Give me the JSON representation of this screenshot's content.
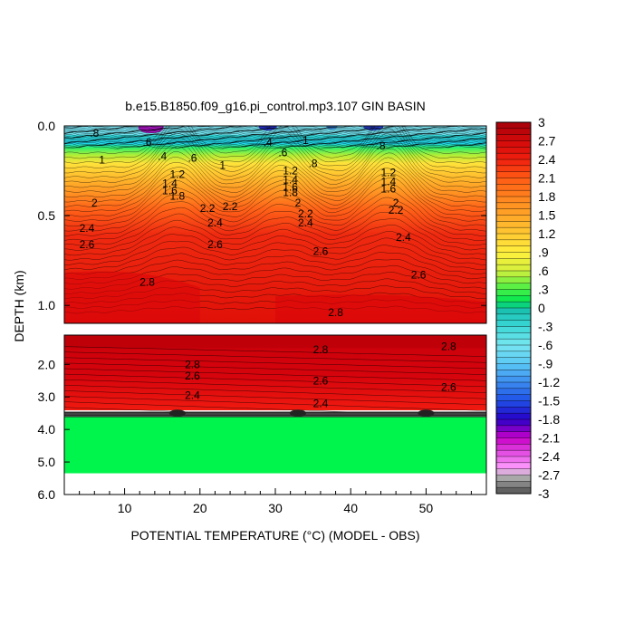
{
  "chart_data": {
    "type": "heatmap",
    "title": "b.e15.B1850.f09_g16.pi_control.mp3.107 GIN BASIN",
    "xlabel": "POTENTIAL TEMPERATURE (°C) (MODEL - OBS)",
    "ylabel": "DEPTH (km)",
    "x_ticks": [
      "10",
      "20",
      "30",
      "40",
      "50"
    ],
    "x_tick_values": [
      10,
      20,
      30,
      40,
      50
    ],
    "xlim": [
      2,
      58
    ],
    "upper_panel": {
      "ylim": [
        0.0,
        1.1
      ],
      "y_ticks": [
        "0.0",
        "0.5",
        "1.0"
      ],
      "y_tick_values": [
        0.0,
        0.5,
        1.0
      ]
    },
    "lower_panel": {
      "ylim": [
        1.1,
        6.0
      ],
      "y_ticks": [
        "2.0",
        "3.0",
        "4.0",
        "5.0",
        "6.0"
      ],
      "y_tick_values": [
        2.0,
        3.0,
        4.0,
        5.0,
        6.0
      ],
      "valid_bottom_depth": 5.35
    },
    "colorbar": {
      "labels": [
        "3",
        "2.7",
        "2.4",
        "2.1",
        "1.8",
        "1.5",
        "1.2",
        ".9",
        ".6",
        ".3",
        "0",
        "-.3",
        "-.6",
        "-.9",
        "-1.2",
        "-1.5",
        "-1.8",
        "-2.1",
        "-2.4",
        "-2.7",
        "-3"
      ],
      "min": -3,
      "max": 3,
      "step": 0.1
    },
    "contour_labels": [
      {
        "text": ".8",
        "x": 6,
        "depth": 0.04
      },
      {
        "text": ".6",
        "x": 13,
        "depth": 0.09
      },
      {
        "text": ".4",
        "x": 15,
        "depth": 0.17
      },
      {
        "text": ".6",
        "x": 19,
        "depth": 0.18
      },
      {
        "text": "1",
        "x": 7,
        "depth": 0.19
      },
      {
        "text": "1",
        "x": 23,
        "depth": 0.22
      },
      {
        "text": "1.2",
        "x": 17,
        "depth": 0.27
      },
      {
        "text": "1.4",
        "x": 16,
        "depth": 0.32
      },
      {
        "text": "1.6",
        "x": 16,
        "depth": 0.36
      },
      {
        "text": "1.8",
        "x": 17,
        "depth": 0.39
      },
      {
        "text": "2",
        "x": 6,
        "depth": 0.43
      },
      {
        "text": "2.2",
        "x": 21,
        "depth": 0.46
      },
      {
        "text": "2.2",
        "x": 24,
        "depth": 0.45
      },
      {
        "text": "2.4",
        "x": 5,
        "depth": 0.57
      },
      {
        "text": "2.6",
        "x": 5,
        "depth": 0.66
      },
      {
        "text": "2.4",
        "x": 22,
        "depth": 0.54
      },
      {
        "text": "2.6",
        "x": 22,
        "depth": 0.66
      },
      {
        "text": "2.8",
        "x": 13,
        "depth": 0.87
      },
      {
        "text": ".4",
        "x": 29,
        "depth": 0.09
      },
      {
        "text": ".6",
        "x": 31,
        "depth": 0.15
      },
      {
        "text": "1",
        "x": 34,
        "depth": 0.08
      },
      {
        "text": ".8",
        "x": 35,
        "depth": 0.21
      },
      {
        "text": "1.2",
        "x": 32,
        "depth": 0.25
      },
      {
        "text": "1.4",
        "x": 32,
        "depth": 0.3
      },
      {
        "text": "1.6",
        "x": 32,
        "depth": 0.34
      },
      {
        "text": "1.8",
        "x": 32,
        "depth": 0.37
      },
      {
        "text": "2",
        "x": 33,
        "depth": 0.43
      },
      {
        "text": "2.2",
        "x": 34,
        "depth": 0.49
      },
      {
        "text": "2.4",
        "x": 34,
        "depth": 0.54
      },
      {
        "text": "2.6",
        "x": 36,
        "depth": 0.7
      },
      {
        "text": "2.8",
        "x": 38,
        "depth": 1.04
      },
      {
        "text": ".8",
        "x": 44,
        "depth": 0.11
      },
      {
        "text": "1.2",
        "x": 45,
        "depth": 0.26
      },
      {
        "text": "1.4",
        "x": 45,
        "depth": 0.31
      },
      {
        "text": "1.6",
        "x": 45,
        "depth": 0.35
      },
      {
        "text": "2",
        "x": 46,
        "depth": 0.43
      },
      {
        "text": "2.2",
        "x": 46,
        "depth": 0.47
      },
      {
        "text": "2.4",
        "x": 47,
        "depth": 0.62
      },
      {
        "text": "2.6",
        "x": 49,
        "depth": 0.83
      }
    ],
    "lower_contour_labels": [
      {
        "text": "2.8",
        "x": 36,
        "depth": 1.55
      },
      {
        "text": "2.8",
        "x": 53,
        "depth": 1.45
      },
      {
        "text": "2.8",
        "x": 19,
        "depth": 2.0
      },
      {
        "text": "2.6",
        "x": 19,
        "depth": 2.35
      },
      {
        "text": "2.6",
        "x": 36,
        "depth": 2.5
      },
      {
        "text": "2.6",
        "x": 53,
        "depth": 2.7
      },
      {
        "text": "2.4",
        "x": 19,
        "depth": 2.95
      },
      {
        "text": "2.4",
        "x": 36,
        "depth": 3.2
      }
    ]
  }
}
